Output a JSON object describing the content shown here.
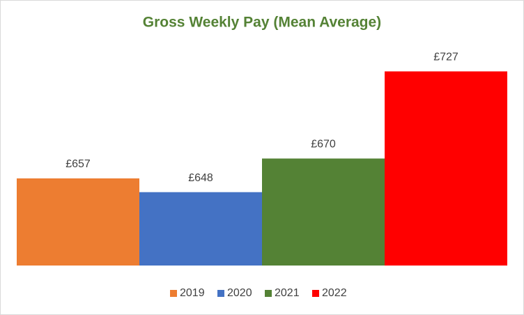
{
  "chart_data": {
    "type": "bar",
    "title": "Gross Weekly Pay (Mean Average)",
    "categories": [
      null
    ],
    "series": [
      {
        "name": "2019",
        "color": "#ed7d31",
        "values": [
          657
        ],
        "value_labels": [
          "£657"
        ]
      },
      {
        "name": "2020",
        "color": "#4472c4",
        "values": [
          648
        ],
        "value_labels": [
          "£648"
        ]
      },
      {
        "name": "2021",
        "color": "#548235",
        "values": [
          670
        ],
        "value_labels": [
          "£670"
        ]
      },
      {
        "name": "2022",
        "color": "#ff0000",
        "values": [
          727
        ],
        "value_labels": [
          "£727"
        ]
      }
    ],
    "ylim": [
      600,
      750
    ],
    "legend": "bottom"
  }
}
